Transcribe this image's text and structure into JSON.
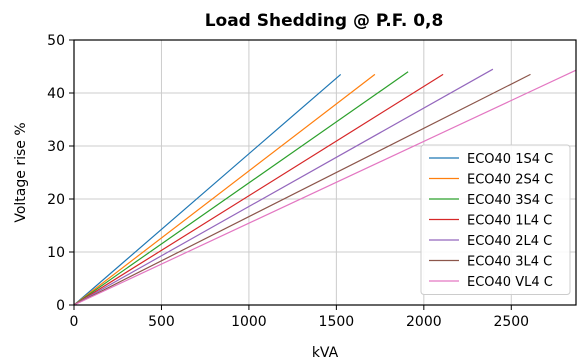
{
  "chart_data": {
    "type": "line",
    "title": "Load Shedding @ P.F. 0,8",
    "xlabel": "kVA",
    "ylabel": "Voltage rise %",
    "xlim": [
      0,
      2870
    ],
    "ylim": [
      0,
      50
    ],
    "xticks": [
      0,
      500,
      1000,
      1500,
      2000,
      2500
    ],
    "yticks": [
      0,
      10,
      20,
      30,
      40,
      50
    ],
    "grid": true,
    "legend_position": "right",
    "series": [
      {
        "name": "ECO40 1S4 C",
        "color": "#1f77b4",
        "x": [
          0,
          1525
        ],
        "y": [
          0,
          43.5
        ]
      },
      {
        "name": "ECO40 2S4 C",
        "color": "#ff7f0e",
        "x": [
          0,
          1720
        ],
        "y": [
          0,
          43.5
        ]
      },
      {
        "name": "ECO40 3S4 C",
        "color": "#2ca02c",
        "x": [
          0,
          1910
        ],
        "y": [
          0,
          44.0
        ]
      },
      {
        "name": "ECO40 1L4 C",
        "color": "#d62728",
        "x": [
          0,
          2110
        ],
        "y": [
          0,
          43.5
        ]
      },
      {
        "name": "ECO40 2L4 C",
        "color": "#9467bd",
        "x": [
          0,
          2395
        ],
        "y": [
          0,
          44.5
        ]
      },
      {
        "name": "ECO40 3L4 C",
        "color": "#8c564b",
        "x": [
          0,
          2610
        ],
        "y": [
          0,
          43.5
        ]
      },
      {
        "name": "ECO40 VL4 C",
        "color": "#e377c2",
        "x": [
          0,
          2870
        ],
        "y": [
          0,
          44.3
        ]
      }
    ]
  }
}
